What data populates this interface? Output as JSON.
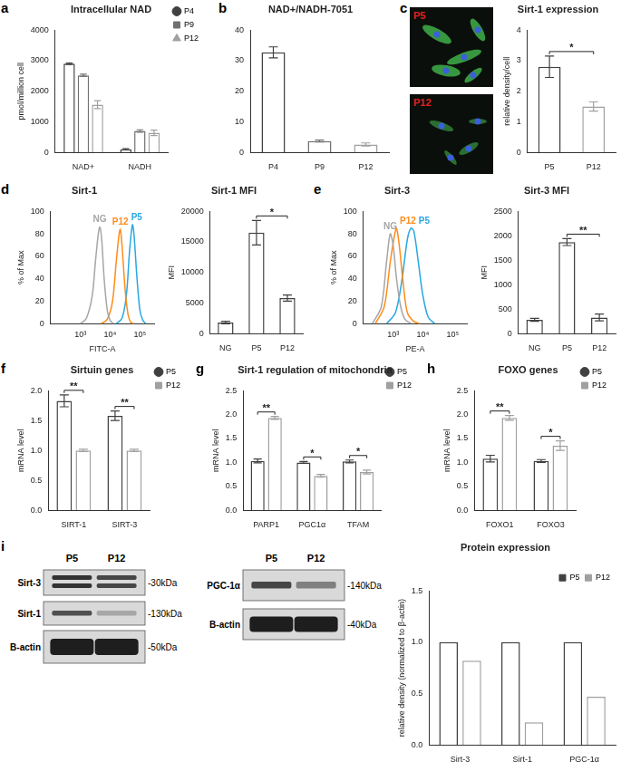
{
  "chart_data": [
    {
      "panel": "a",
      "type": "bar",
      "title": "Intracellular NAD",
      "y_label": "pmol/million cell",
      "categories": [
        "NAD+",
        "NADH"
      ],
      "series": [
        {
          "name": "P4",
          "color": "#404040",
          "marker": "circle",
          "values": [
            2900,
            100
          ],
          "errors": [
            25,
            20
          ]
        },
        {
          "name": "P9",
          "color": "#707070",
          "marker": "square",
          "values": [
            2520,
            700
          ],
          "errors": [
            35,
            40
          ]
        },
        {
          "name": "P12",
          "color": "#a0a0a0",
          "marker": "triangle",
          "values": [
            1560,
            640
          ],
          "errors": [
            130,
            90
          ]
        }
      ],
      "ylim": [
        0,
        4000
      ],
      "yticks": [
        0,
        1000,
        2000,
        3000,
        4000
      ],
      "legend": "right"
    },
    {
      "panel": "b",
      "type": "bar",
      "title": "NAD+/NADH-7051",
      "categories": [
        "P4",
        "P9",
        "P12"
      ],
      "values": [
        32.7,
        3.7,
        2.6
      ],
      "errors": [
        1.8,
        0.3,
        0.5
      ],
      "colors": [
        "#404040",
        "#707070",
        "#a0a0a0"
      ],
      "ylim": [
        0,
        40
      ],
      "yticks": [
        0,
        10,
        20,
        30,
        40
      ]
    },
    {
      "type": "bar",
      "title": "Sirt-1 expression",
      "y_label": "relative density/cell",
      "categories": [
        "P5",
        "P12"
      ],
      "values": [
        2.8,
        1.5
      ],
      "errors": [
        0.35,
        0.15
      ],
      "colors": [
        "#404040",
        "#a0a0a0"
      ],
      "ylim": [
        0,
        4
      ],
      "yticks": [
        0,
        1,
        2,
        3,
        4
      ],
      "significance": [
        {
          "from": "P5",
          "to": "P12",
          "label": "*"
        }
      ]
    },
    {
      "panel": "d",
      "type": "line",
      "title": "Sirt-1",
      "x_label": "FITC-A",
      "y_label": "% of Max",
      "log": "x",
      "xlim": [
        100,
        300000
      ],
      "xticks": [
        {
          "value": 1000,
          "label": "10³"
        },
        {
          "value": 10000,
          "label": "10⁴"
        },
        {
          "value": 100000,
          "label": "10⁵"
        }
      ],
      "ylim": [
        0,
        100
      ],
      "yticks": [
        0,
        20,
        40,
        60,
        80,
        100
      ],
      "series": [
        {
          "name": "NG",
          "color": "#a6a6a6",
          "x": [
            1000,
            1600,
            2500,
            3200,
            4000,
            4500,
            5200,
            6300,
            8000,
            10000,
            13000
          ],
          "values": [
            0,
            5,
            25,
            55,
            80,
            86,
            75,
            40,
            12,
            3,
            0
          ]
        },
        {
          "name": "P12",
          "color": "#ff8c1a",
          "x": [
            5000,
            8000,
            12000,
            16000,
            20000,
            22000,
            25000,
            32000,
            40000,
            50000,
            63000
          ],
          "values": [
            0,
            4,
            20,
            55,
            80,
            84,
            70,
            30,
            8,
            1,
            0
          ]
        },
        {
          "name": "P5",
          "color": "#29a8e0",
          "x": [
            16000,
            25000,
            35000,
            45000,
            56000,
            63000,
            80000,
            100000,
            126000,
            160000
          ],
          "values": [
            0,
            5,
            25,
            65,
            88,
            80,
            40,
            12,
            3,
            0
          ]
        }
      ]
    },
    {
      "type": "bar",
      "title": "Sirt-1 MFI",
      "y_label": "MFI",
      "categories": [
        "NG",
        "P5",
        "P12"
      ],
      "values": [
        1800,
        16500,
        5800
      ],
      "errors": [
        200,
        2000,
        500
      ],
      "color": "#404040",
      "ylim": [
        0,
        20000
      ],
      "yticks": [
        0,
        5000,
        10000,
        15000,
        20000
      ],
      "significance": [
        {
          "from": "P5",
          "to": "P12",
          "label": "*"
        }
      ]
    },
    {
      "panel": "e",
      "type": "line",
      "title": "Sirt-3",
      "x_label": "PE-A",
      "y_label": "% of Max",
      "log": "x",
      "xlim": [
        100,
        300000
      ],
      "xticks": [
        {
          "value": 1000,
          "label": "10³"
        },
        {
          "value": 10000,
          "label": "10⁴"
        },
        {
          "value": 100000,
          "label": "10⁵"
        }
      ],
      "ylim": [
        0,
        100
      ],
      "yticks": [
        0,
        20,
        40,
        60,
        80,
        100
      ],
      "series": [
        {
          "name": "NG",
          "color": "#a6a6a6",
          "x": [
            200,
            400,
            600,
            800,
            1000,
            1300,
            1800,
            2500,
            4000
          ],
          "values": [
            0,
            15,
            55,
            80,
            70,
            40,
            15,
            4,
            0
          ]
        },
        {
          "name": "P12",
          "color": "#ff8c1a",
          "x": [
            250,
            500,
            800,
            1100,
            1300,
            1600,
            2200,
            3000,
            5000,
            8000
          ],
          "values": [
            0,
            15,
            55,
            78,
            85,
            70,
            35,
            10,
            2,
            0
          ]
        },
        {
          "name": "P5",
          "color": "#29a8e0",
          "x": [
            600,
            1200,
            2000,
            3000,
            4000,
            5000,
            7000,
            10000,
            15000,
            25000
          ],
          "values": [
            0,
            10,
            40,
            75,
            85,
            82,
            55,
            25,
            6,
            0
          ]
        }
      ]
    },
    {
      "type": "bar",
      "title": "Sirt-3 MFI",
      "y_label": "MFI",
      "categories": [
        "NG",
        "P5",
        "P12"
      ],
      "values": [
        280,
        1870,
        330
      ],
      "errors": [
        30,
        70,
        70
      ],
      "color": "#404040",
      "ylim": [
        0,
        2500
      ],
      "yticks": [
        0,
        500,
        1000,
        1500,
        2000,
        2500
      ],
      "significance": [
        {
          "from": "P5",
          "to": "P12",
          "label": "**"
        }
      ]
    },
    {
      "panel": "f",
      "type": "bar",
      "title": "Sirtuin genes",
      "y_label": "mRNA level",
      "categories": [
        "SIRT-1",
        "SIRT-3"
      ],
      "series": [
        {
          "name": "P5",
          "color": "#404040",
          "marker": "circle",
          "values": [
            1.83,
            1.58
          ],
          "errors": [
            0.1,
            0.08
          ]
        },
        {
          "name": "P12",
          "color": "#a0a0a0",
          "marker": "square",
          "values": [
            1.0,
            1.0
          ],
          "errors": [
            0.02,
            0.02
          ]
        }
      ],
      "ylim": [
        0,
        2
      ],
      "yticks": [
        {
          "value": 0,
          "label": "0.0"
        },
        0.5,
        {
          "value": 1,
          "label": "1.0"
        },
        1.5,
        {
          "value": 2,
          "label": "2.0"
        }
      ],
      "legend": "right",
      "significance": [
        {
          "category": "SIRT-1",
          "label": "**"
        },
        {
          "category": "SIRT-3",
          "label": "**"
        }
      ]
    },
    {
      "panel": "g",
      "type": "bar",
      "title": "Sirt-1 regulation of mitochondria",
      "y_label": "mRNA level",
      "categories": [
        "PARP1",
        "PGC1α",
        "TFAM"
      ],
      "series": [
        {
          "name": "P5",
          "color": "#404040",
          "marker": "circle",
          "values": [
            1.03,
            1.0,
            1.02
          ],
          "errors": [
            0.04,
            0.02,
            0.03
          ]
        },
        {
          "name": "P12",
          "color": "#a0a0a0",
          "marker": "square",
          "values": [
            1.93,
            0.72,
            0.8
          ],
          "errors": [
            0.03,
            0.03,
            0.04
          ]
        }
      ],
      "ylim": [
        0,
        2.5
      ],
      "yticks": [
        {
          "value": 0,
          "label": "0.0"
        },
        0.5,
        {
          "value": 1,
          "label": "1.0"
        },
        1.5,
        {
          "value": 2,
          "label": "2.0"
        },
        2.5
      ],
      "legend": "right",
      "significance": [
        {
          "category": "PARP1",
          "label": "**"
        },
        {
          "category": "PGC1α",
          "label": "*"
        },
        {
          "category": "TFAM",
          "label": "*"
        }
      ]
    },
    {
      "panel": "h",
      "type": "bar",
      "title": "FOXO genes",
      "y_label": "mRNA level",
      "categories": [
        "FOXO1",
        "FOXO3"
      ],
      "series": [
        {
          "name": "P5",
          "color": "#404040",
          "marker": "circle",
          "values": [
            1.08,
            1.03
          ],
          "errors": [
            0.07,
            0.03
          ]
        },
        {
          "name": "P12",
          "color": "#a0a0a0",
          "marker": "square",
          "values": [
            1.93,
            1.35
          ],
          "errors": [
            0.05,
            0.1
          ]
        }
      ],
      "ylim": [
        0,
        2.5
      ],
      "yticks": [
        {
          "value": 0,
          "label": "0.0"
        },
        0.5,
        {
          "value": 1,
          "label": "1.0"
        },
        1.5,
        {
          "value": 2,
          "label": "2.0"
        },
        2.5
      ],
      "legend": "right",
      "significance": [
        {
          "category": "FOXO1",
          "label": "**"
        },
        {
          "category": "FOXO3",
          "label": "*"
        }
      ]
    },
    {
      "type": "bar",
      "title": "Protein expression",
      "y_label": "relative density (normalized to β-actin)",
      "categories": [
        "Sirt-3",
        "Sirt-1",
        "PGC-1α"
      ],
      "series": [
        {
          "name": "P5",
          "color": "#404040",
          "marker": "square",
          "values": [
            1,
            1,
            1
          ]
        },
        {
          "name": "P12",
          "color": "#a0a0a0",
          "marker": "square",
          "values": [
            0.82,
            0.22,
            0.47
          ]
        }
      ],
      "ylim": [
        0,
        1.5
      ],
      "yticks": [
        {
          "value": 0,
          "label": "0.0"
        },
        0.5,
        {
          "value": 1,
          "label": "1.0"
        },
        1.5
      ],
      "legend": "top-right"
    }
  ],
  "images": {
    "panel": "c",
    "labels": [
      "P5",
      "P12"
    ]
  },
  "blots": {
    "panel": "i",
    "groups": [
      {
        "lanes": [
          "P5",
          "P12"
        ],
        "rows": [
          {
            "label": "Sirt-3",
            "size": "-30kDa"
          },
          {
            "label": "Sirt-1",
            "size": "-130kDa"
          },
          {
            "label": "B-actin",
            "size": "-50kDa"
          }
        ]
      },
      {
        "lanes": [
          "P5",
          "P12"
        ],
        "rows": [
          {
            "label": "PGC-1α",
            "size": "-140kDa"
          },
          {
            "label": "B-actin",
            "size": "-40kDa"
          }
        ]
      }
    ]
  }
}
